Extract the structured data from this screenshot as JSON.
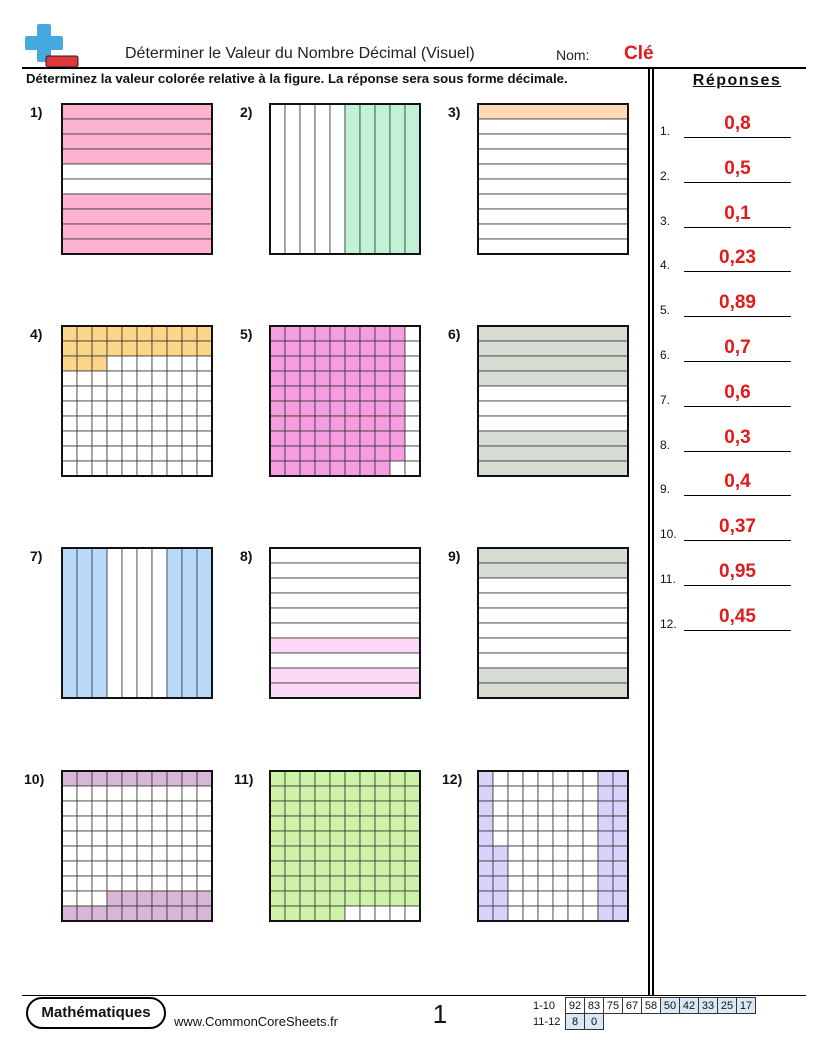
{
  "header": {
    "title": "Déterminer le Valeur du Nombre Décimal (Visuel)",
    "name_label": "Nom:",
    "name_value": "Clé",
    "instructions": "Déterminez la valeur colorée relative à la figure. La réponse sera sous forme décimale."
  },
  "answers": {
    "title": "Réponses",
    "items": [
      {
        "num": "1.",
        "value": "0,8"
      },
      {
        "num": "2.",
        "value": "0,5"
      },
      {
        "num": "3.",
        "value": "0,1"
      },
      {
        "num": "4.",
        "value": "0,23"
      },
      {
        "num": "5.",
        "value": "0,89"
      },
      {
        "num": "6.",
        "value": "0,7"
      },
      {
        "num": "7.",
        "value": "0,6"
      },
      {
        "num": "8.",
        "value": "0,3"
      },
      {
        "num": "9.",
        "value": "0,4"
      },
      {
        "num": "10.",
        "value": "0,37"
      },
      {
        "num": "11.",
        "value": "0,95"
      },
      {
        "num": "12.",
        "value": "0,45"
      }
    ]
  },
  "problems": [
    {
      "label": "1)",
      "kind": "rows",
      "color": "#ffb3d1",
      "shaded": [
        0,
        1,
        2,
        3,
        6,
        7,
        8,
        9
      ]
    },
    {
      "label": "2)",
      "kind": "cols",
      "color": "#c2f2d6",
      "shaded": [
        5,
        6,
        7,
        8,
        9
      ]
    },
    {
      "label": "3)",
      "kind": "rows",
      "color": "#ffd9b3",
      "shaded": [
        0
      ]
    },
    {
      "label": "4)",
      "kind": "hundred",
      "color": "#fdd588",
      "order": "rows",
      "count": 23
    },
    {
      "label": "5)",
      "kind": "hundred",
      "color": "#f59de0",
      "order": "cols",
      "count": 89
    },
    {
      "label": "6)",
      "kind": "rows",
      "color": "#d6dcd2",
      "shaded": [
        0,
        1,
        2,
        3,
        7,
        8,
        9
      ]
    },
    {
      "label": "7)",
      "kind": "cols",
      "color": "#b9d9f9",
      "shaded": [
        0,
        1,
        2,
        7,
        8,
        9
      ]
    },
    {
      "label": "8)",
      "kind": "rows",
      "color": "#fbd9f7",
      "shaded": [
        6,
        8,
        9
      ]
    },
    {
      "label": "9)",
      "kind": "rows",
      "color": "#d6dcd2",
      "shaded": [
        0,
        1,
        8,
        9
      ]
    },
    {
      "label": "10)",
      "kind": "hundred",
      "color": "#d7b6d7",
      "cells": "row0+bottom",
      "count": 37
    },
    {
      "label": "11)",
      "kind": "hundred",
      "color": "#cdf2a8",
      "order": "rows",
      "count": 95
    },
    {
      "label": "12)",
      "kind": "hundred",
      "color": "#d6d2fa",
      "cells": "cols12",
      "count": 45
    }
  ],
  "footer": {
    "brand": "Mathématiques",
    "site": "www.CommonCoreSheets.fr",
    "page": "1",
    "score_rows": [
      {
        "label": "1-10",
        "cells": [
          "92",
          "83",
          "75",
          "67",
          "58",
          "50",
          "42",
          "33",
          "25",
          "17"
        ]
      },
      {
        "label": "11-12",
        "cells": [
          "8",
          "0"
        ]
      }
    ]
  },
  "colors": {
    "accent": "#e01b1b",
    "logo_blue": "#43a9df",
    "logo_red": "#e0383a"
  }
}
